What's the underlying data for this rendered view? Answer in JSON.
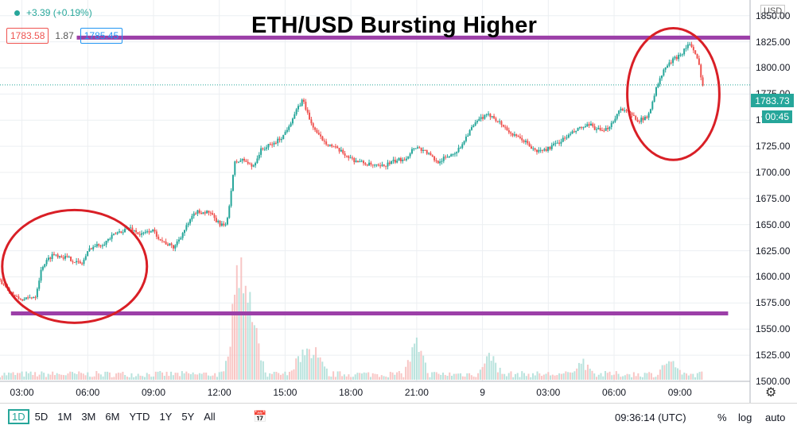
{
  "header": {
    "change_text": "+3.39 (+0.19%)",
    "bid": "1783.58",
    "spread": "1.87",
    "ask": "1785.45"
  },
  "chart_data": {
    "type": "candlestick",
    "title": "ETH/USD Bursting Higher",
    "currency": "USD",
    "last_price": "1783.73",
    "countdown": "00:45",
    "ylim": [
      1500,
      1865
    ],
    "yticks": [
      1850,
      1825,
      1800,
      1775,
      1750,
      1725,
      1700,
      1675,
      1650,
      1625,
      1600,
      1575,
      1550,
      1525,
      1500
    ],
    "xlim": [
      0,
      34.2
    ],
    "xticks": [
      {
        "hour": 1.0,
        "label": "03:00"
      },
      {
        "hour": 4.0,
        "label": "06:00"
      },
      {
        "hour": 7.0,
        "label": "09:00"
      },
      {
        "hour": 10.0,
        "label": "12:00"
      },
      {
        "hour": 13.0,
        "label": "15:00"
      },
      {
        "hour": 16.0,
        "label": "18:00"
      },
      {
        "hour": 19.0,
        "label": "21:00"
      },
      {
        "hour": 22.0,
        "label": "9"
      },
      {
        "hour": 25.0,
        "label": "03:00"
      },
      {
        "hour": 28.0,
        "label": "06:00"
      },
      {
        "hour": 31.0,
        "label": "09:00"
      }
    ],
    "price_path": [
      [
        0.0,
        1598
      ],
      [
        0.4,
        1590
      ],
      [
        0.8,
        1580
      ],
      [
        1.2,
        1578
      ],
      [
        1.7,
        1582
      ],
      [
        2.0,
        1610
      ],
      [
        2.5,
        1622
      ],
      [
        3.2,
        1618
      ],
      [
        3.8,
        1612
      ],
      [
        4.2,
        1628
      ],
      [
        4.8,
        1632
      ],
      [
        5.4,
        1642
      ],
      [
        6.0,
        1647
      ],
      [
        6.5,
        1640
      ],
      [
        7.0,
        1645
      ],
      [
        7.5,
        1634
      ],
      [
        8.0,
        1628
      ],
      [
        8.5,
        1645
      ],
      [
        9.0,
        1662
      ],
      [
        9.6,
        1662
      ],
      [
        10.0,
        1652
      ],
      [
        10.4,
        1648
      ],
      [
        10.8,
        1710
      ],
      [
        11.2,
        1712
      ],
      [
        11.6,
        1705
      ],
      [
        12.0,
        1722
      ],
      [
        12.6,
        1728
      ],
      [
        13.0,
        1735
      ],
      [
        13.5,
        1755
      ],
      [
        13.9,
        1770
      ],
      [
        14.2,
        1750
      ],
      [
        14.6,
        1735
      ],
      [
        15.0,
        1728
      ],
      [
        15.6,
        1720
      ],
      [
        16.2,
        1712
      ],
      [
        16.8,
        1708
      ],
      [
        17.4,
        1705
      ],
      [
        18.0,
        1710
      ],
      [
        18.6,
        1714
      ],
      [
        19.0,
        1725
      ],
      [
        19.5,
        1720
      ],
      [
        20.0,
        1710
      ],
      [
        20.5,
        1715
      ],
      [
        21.0,
        1722
      ],
      [
        21.5,
        1740
      ],
      [
        22.0,
        1752
      ],
      [
        22.5,
        1755
      ],
      [
        23.0,
        1745
      ],
      [
        23.5,
        1735
      ],
      [
        24.0,
        1730
      ],
      [
        24.5,
        1720
      ],
      [
        25.0,
        1722
      ],
      [
        25.5,
        1728
      ],
      [
        26.0,
        1735
      ],
      [
        26.5,
        1742
      ],
      [
        27.0,
        1745
      ],
      [
        27.6,
        1738
      ],
      [
        28.0,
        1748
      ],
      [
        28.4,
        1762
      ],
      [
        28.8,
        1756
      ],
      [
        29.2,
        1750
      ],
      [
        29.6,
        1752
      ],
      [
        30.0,
        1780
      ],
      [
        30.4,
        1800
      ],
      [
        30.8,
        1808
      ],
      [
        31.2,
        1815
      ],
      [
        31.5,
        1824
      ],
      [
        31.8,
        1812
      ],
      [
        32.0,
        1800
      ],
      [
        32.1,
        1784
      ]
    ],
    "volume_spikes": [
      [
        10.8,
        1
      ],
      [
        11.0,
        0.75
      ],
      [
        11.3,
        0.55
      ],
      [
        11.6,
        0.4
      ],
      [
        13.8,
        0.35
      ],
      [
        14.4,
        0.3
      ],
      [
        19.0,
        0.45
      ],
      [
        22.3,
        0.3
      ],
      [
        26.5,
        0.2
      ],
      [
        30.5,
        0.2
      ]
    ],
    "horizontal_levels": [
      {
        "price": 1829,
        "from_hour": 3.5,
        "to_hour": 34.2,
        "color": "#9c3fa8"
      },
      {
        "price": 1565,
        "from_hour": 0.5,
        "to_hour": 33.2,
        "color": "#9c3fa8"
      }
    ],
    "circles": [
      {
        "center_hour": 3.4,
        "center_price": 1610,
        "rx_hours": 3.3,
        "ry_price": 54,
        "color": "#d91f26"
      },
      {
        "center_hour": 30.7,
        "center_price": 1775,
        "rx_hours": 2.1,
        "ry_price": 63,
        "color": "#d91f26"
      }
    ],
    "colors": {
      "up": "#26a69a",
      "down": "#ef5350",
      "grid": "#eceff2"
    }
  },
  "toolbar": {
    "periods": [
      "1D",
      "5D",
      "1M",
      "3M",
      "6M",
      "YTD",
      "1Y",
      "5Y",
      "All"
    ],
    "active_period": "1D",
    "clock": "09:36:14 (UTC)",
    "percent_label": "%",
    "log_label": "log",
    "auto_label": "auto",
    "calendar_icon": "calendar-range-icon",
    "settings_icon": "gear-icon"
  }
}
